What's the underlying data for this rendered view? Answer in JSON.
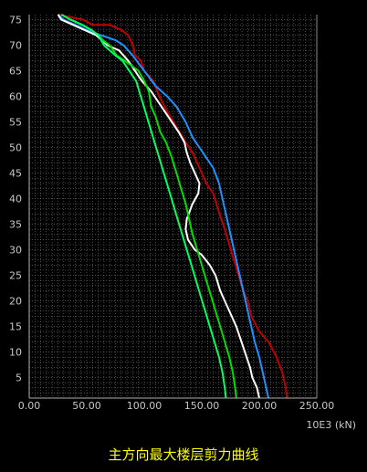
{
  "chart_data": {
    "type": "line",
    "title": "主方向最大楼层剪力曲线",
    "unit_label": "10E3 (kN)",
    "xlabel": "",
    "ylabel": "",
    "xlim": [
      0,
      250
    ],
    "ylim": [
      1,
      76
    ],
    "grid": true,
    "x_ticks": [
      "0.00",
      "50.00",
      "100.00",
      "150.00",
      "200.00",
      "250.00"
    ],
    "y_ticks": [
      "5",
      "10",
      "15",
      "20",
      "25",
      "30",
      "35",
      "40",
      "45",
      "50",
      "55",
      "60",
      "65",
      "70",
      "75"
    ],
    "colors": {
      "background": "#000000",
      "grid": "#7a7a7a",
      "axis": "#b0b0b0",
      "tick_text": "#c8c8c8",
      "title": "#ffff00"
    },
    "series": [
      {
        "color": "#c00000",
        "points": [
          [
            224,
            1
          ],
          [
            223,
            3
          ],
          [
            220,
            6
          ],
          [
            215,
            9
          ],
          [
            208,
            12
          ],
          [
            200,
            14
          ],
          [
            193,
            17
          ],
          [
            190,
            20
          ],
          [
            186,
            22
          ],
          [
            182,
            25
          ],
          [
            178,
            28
          ],
          [
            174,
            31
          ],
          [
            170,
            34
          ],
          [
            164,
            38
          ],
          [
            160,
            41
          ],
          [
            154,
            43
          ],
          [
            148,
            46
          ],
          [
            142,
            49
          ],
          [
            136,
            51
          ],
          [
            128,
            54
          ],
          [
            120,
            57
          ],
          [
            113,
            60
          ],
          [
            108,
            63
          ],
          [
            104,
            64
          ],
          [
            100,
            65
          ],
          [
            97,
            67
          ],
          [
            92,
            68
          ],
          [
            90,
            70
          ],
          [
            86,
            72
          ],
          [
            80,
            73
          ],
          [
            70,
            74
          ],
          [
            55,
            74
          ],
          [
            47,
            75
          ],
          [
            25,
            76
          ]
        ]
      },
      {
        "color": "#1e90ff",
        "points": [
          [
            208,
            1
          ],
          [
            206,
            3
          ],
          [
            203,
            6
          ],
          [
            200,
            9
          ],
          [
            196,
            12
          ],
          [
            193,
            15
          ],
          [
            190,
            18
          ],
          [
            186,
            22
          ],
          [
            182,
            26
          ],
          [
            179,
            29
          ],
          [
            176,
            32
          ],
          [
            173,
            35
          ],
          [
            169,
            39
          ],
          [
            165,
            43
          ],
          [
            160,
            46
          ],
          [
            154,
            48
          ],
          [
            148,
            50
          ],
          [
            142,
            52
          ],
          [
            136,
            55
          ],
          [
            128,
            58
          ],
          [
            120,
            60
          ],
          [
            110,
            62
          ],
          [
            100,
            65
          ],
          [
            90,
            68
          ],
          [
            82,
            70
          ],
          [
            75,
            71
          ],
          [
            62,
            72
          ],
          [
            50,
            73
          ],
          [
            40,
            74
          ],
          [
            30,
            75
          ],
          [
            25,
            76
          ]
        ]
      },
      {
        "color": "#ffffff",
        "points": [
          [
            200,
            1
          ],
          [
            198,
            3
          ],
          [
            194,
            5
          ],
          [
            192,
            7
          ],
          [
            189,
            9
          ],
          [
            186,
            11
          ],
          [
            183,
            13
          ],
          [
            180,
            15
          ],
          [
            176,
            17
          ],
          [
            170,
            20
          ],
          [
            166,
            22
          ],
          [
            162,
            25
          ],
          [
            157,
            27
          ],
          [
            150,
            29
          ],
          [
            144,
            30
          ],
          [
            138,
            32
          ],
          [
            136,
            34
          ],
          [
            137,
            36
          ],
          [
            142,
            39
          ],
          [
            147,
            41
          ],
          [
            148,
            43
          ],
          [
            144,
            45
          ],
          [
            140,
            47
          ],
          [
            137,
            49
          ],
          [
            135,
            51
          ],
          [
            130,
            53
          ],
          [
            124,
            55
          ],
          [
            118,
            57
          ],
          [
            112,
            59
          ],
          [
            106,
            61
          ],
          [
            98,
            63
          ],
          [
            92,
            65
          ],
          [
            86,
            67
          ],
          [
            78,
            69
          ],
          [
            68,
            70
          ],
          [
            58,
            72
          ],
          [
            48,
            73
          ],
          [
            38,
            74
          ],
          [
            28,
            75
          ],
          [
            25,
            76
          ]
        ]
      },
      {
        "color": "#00dd00",
        "points": [
          [
            180,
            1
          ],
          [
            179,
            3
          ],
          [
            177,
            6
          ],
          [
            174,
            9
          ],
          [
            170,
            12
          ],
          [
            166,
            15
          ],
          [
            162,
            18
          ],
          [
            158,
            21
          ],
          [
            154,
            24
          ],
          [
            150,
            27
          ],
          [
            146,
            30
          ],
          [
            142,
            33
          ],
          [
            139,
            36
          ],
          [
            136,
            39
          ],
          [
            132,
            42
          ],
          [
            128,
            45
          ],
          [
            124,
            48
          ],
          [
            119,
            51
          ],
          [
            114,
            53
          ],
          [
            110,
            56
          ],
          [
            106,
            58
          ],
          [
            104,
            61
          ],
          [
            100,
            63
          ],
          [
            95,
            65
          ],
          [
            89,
            66
          ],
          [
            83,
            67
          ],
          [
            76,
            68
          ],
          [
            70,
            70
          ],
          [
            64,
            71
          ],
          [
            60,
            72
          ],
          [
            54,
            73
          ],
          [
            46,
            74
          ],
          [
            36,
            75
          ],
          [
            28,
            76
          ]
        ]
      },
      {
        "color": "#00ff60",
        "points": [
          [
            171,
            1
          ],
          [
            170,
            3
          ],
          [
            168,
            6
          ],
          [
            165,
            9
          ],
          [
            161,
            12
          ],
          [
            157,
            15
          ],
          [
            153,
            18
          ],
          [
            149,
            21
          ],
          [
            145,
            24
          ],
          [
            141,
            27
          ],
          [
            137,
            30
          ],
          [
            133,
            33
          ],
          [
            129,
            36
          ],
          [
            125,
            39
          ],
          [
            121,
            42
          ],
          [
            117,
            45
          ],
          [
            113,
            48
          ],
          [
            109,
            51
          ],
          [
            105,
            54
          ],
          [
            101,
            57
          ],
          [
            97,
            60
          ],
          [
            93,
            63
          ],
          [
            87,
            65
          ],
          [
            81,
            67
          ],
          [
            75,
            68
          ],
          [
            70,
            69
          ],
          [
            65,
            70
          ],
          [
            60,
            72
          ],
          [
            54,
            73
          ],
          [
            46,
            74
          ],
          [
            36,
            75
          ],
          [
            28,
            76
          ]
        ]
      }
    ]
  }
}
